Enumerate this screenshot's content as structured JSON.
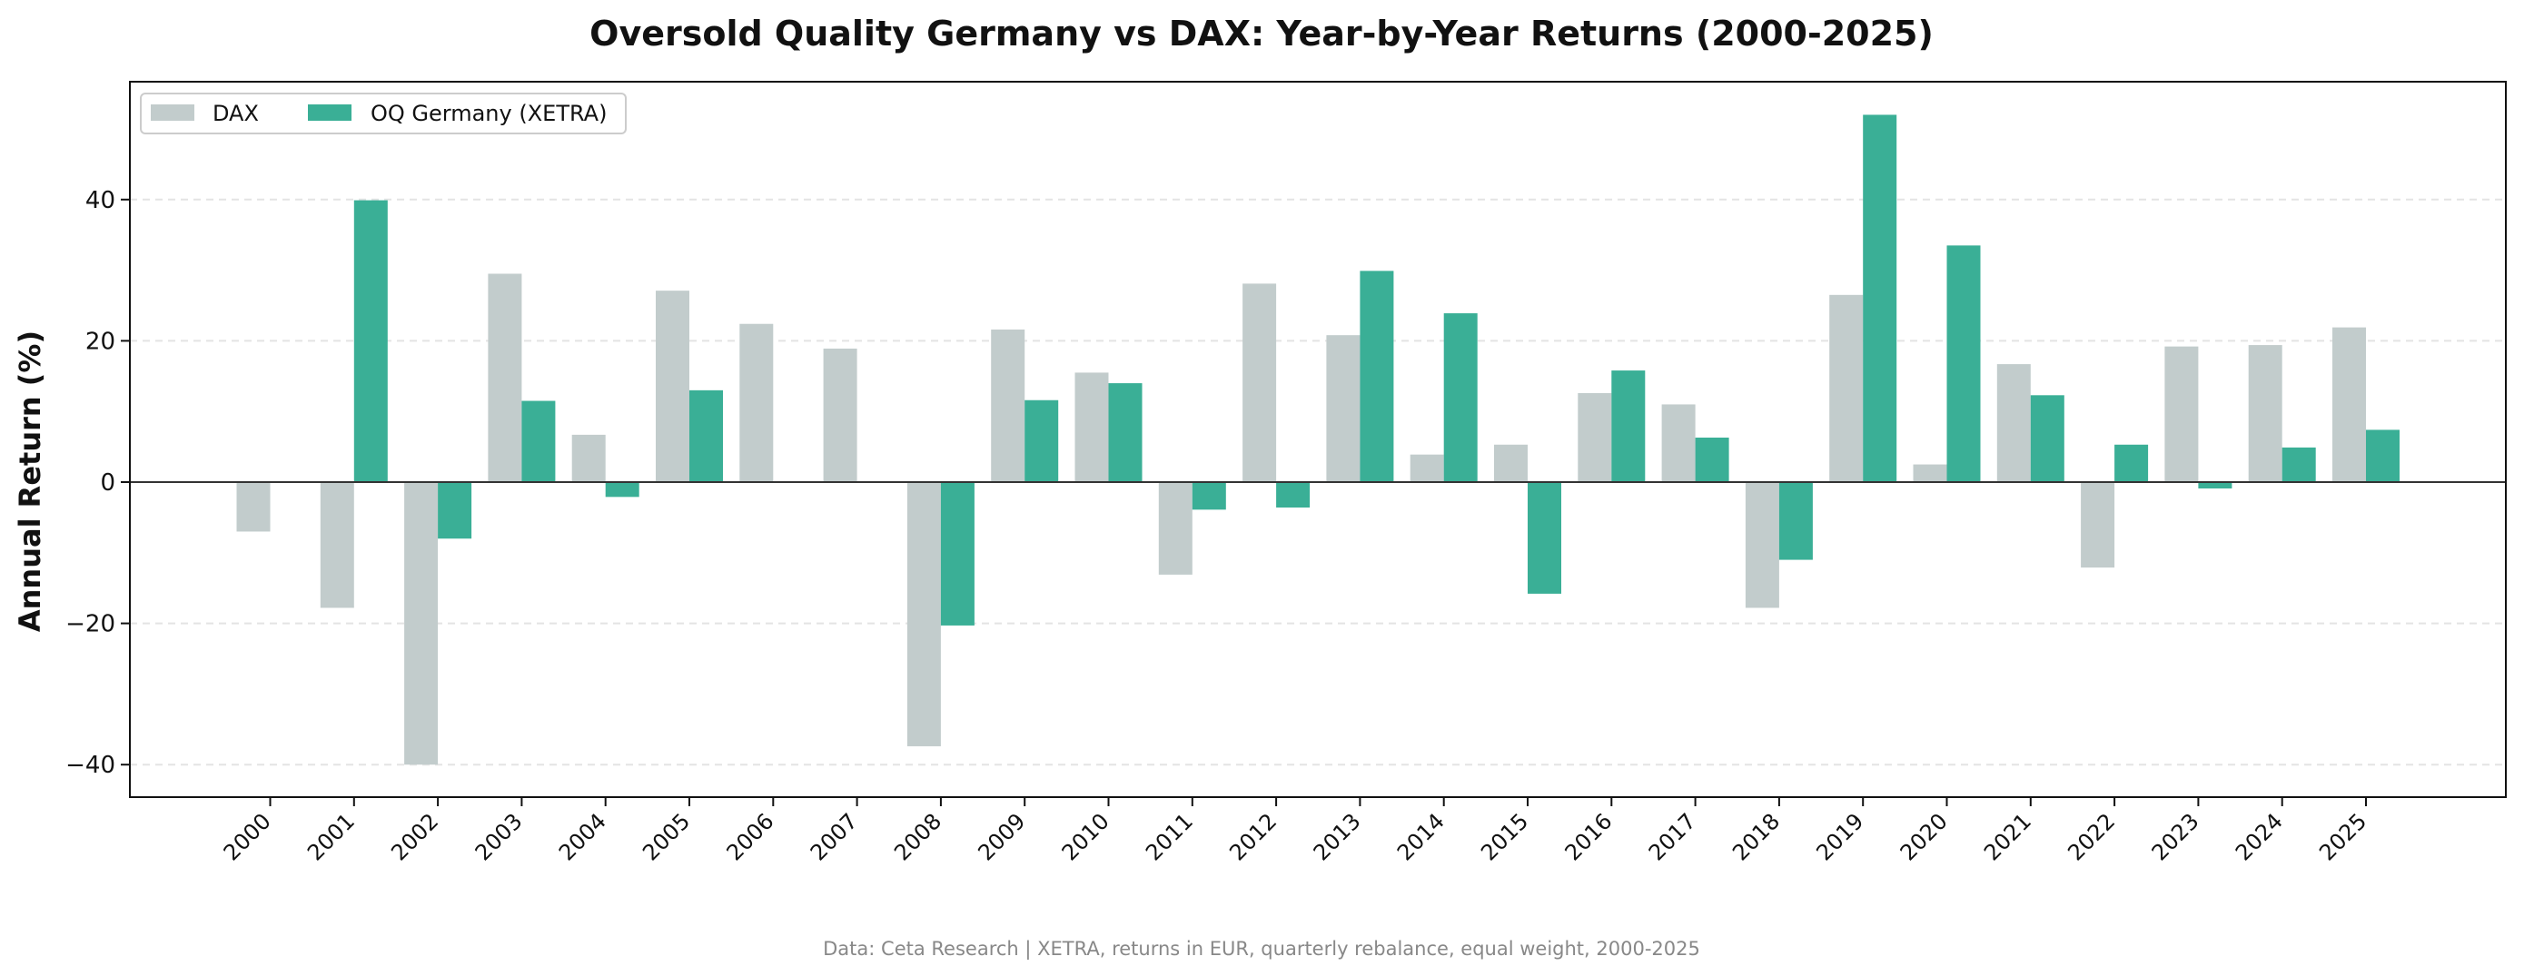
{
  "chart_data": {
    "type": "bar",
    "title": "Oversold Quality Germany vs DAX: Year-by-Year Returns (2000-2025)",
    "xlabel": "",
    "ylabel": "Annual Return (%)",
    "ylim": [
      -44,
      57
    ],
    "yticks": [
      -40,
      -20,
      0,
      20,
      40
    ],
    "ytick_labels": [
      "−40",
      "−20",
      "0",
      "20",
      "40"
    ],
    "grid": "horizontal dashed",
    "legend_position": "top-left",
    "categories": [
      "2000",
      "2001",
      "2002",
      "2003",
      "2004",
      "2005",
      "2006",
      "2007",
      "2008",
      "2009",
      "2010",
      "2011",
      "2012",
      "2013",
      "2014",
      "2015",
      "2016",
      "2017",
      "2018",
      "2019",
      "2020",
      "2021",
      "2022",
      "2023",
      "2024",
      "2025"
    ],
    "series": [
      {
        "name": "DAX",
        "color": "#c2cccc",
        "values": [
          -7.0,
          -17.8,
          -40.0,
          29.5,
          6.7,
          27.1,
          22.4,
          18.9,
          -37.4,
          21.6,
          15.5,
          -13.1,
          28.1,
          20.8,
          3.9,
          5.3,
          12.6,
          11.0,
          -17.8,
          26.5,
          2.5,
          16.7,
          -12.1,
          19.2,
          19.4,
          21.9
        ]
      },
      {
        "name": "OQ Germany (XETRA)",
        "color": "#3aaf96",
        "values": [
          null,
          39.9,
          -8.0,
          11.5,
          -2.1,
          13.0,
          null,
          null,
          -20.3,
          11.6,
          14.0,
          -3.9,
          -3.6,
          29.9,
          23.9,
          -15.8,
          15.8,
          6.3,
          -11.0,
          52.0,
          33.5,
          12.3,
          5.3,
          -0.9,
          4.9,
          7.4
        ]
      }
    ]
  },
  "footer": "Data: Ceta Research | XETRA, returns in EUR, quarterly rebalance, equal weight, 2000-2025"
}
